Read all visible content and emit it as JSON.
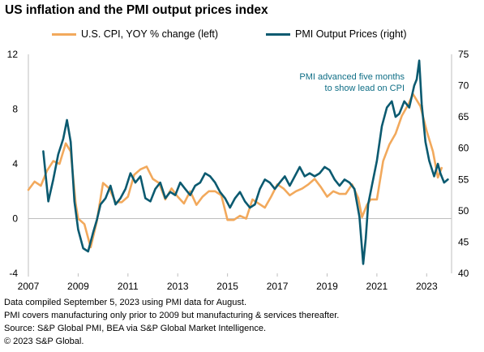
{
  "title": "US inflation and the PMI output prices index",
  "chart_data": {
    "type": "line",
    "title": "US inflation and the PMI output prices index",
    "legend_position": "top",
    "grid": false,
    "x_axis": {
      "range": [
        2007,
        2024
      ],
      "tick_labels": [
        "2007",
        "2009",
        "2011",
        "2013",
        "2015",
        "2017",
        "2019",
        "2021",
        "2023"
      ]
    },
    "y_left": {
      "range": [
        -4,
        12
      ],
      "tick_labels": [
        "-4",
        "0",
        "4",
        "8",
        "12"
      ]
    },
    "y_right": {
      "range": [
        40,
        75
      ],
      "tick_labels": [
        "40",
        "45",
        "50",
        "55",
        "60",
        "65",
        "70",
        "75"
      ]
    },
    "annotation": [
      "PMI advanced five months",
      "to show lead on CPI"
    ],
    "series": [
      {
        "name": "U.S. CPI, YOY % change (left)",
        "axis": "left",
        "color": "#f2a95c",
        "x": [
          2007.0,
          2007.25,
          2007.5,
          2007.75,
          2008.0,
          2008.25,
          2008.5,
          2008.7,
          2008.9,
          2009.0,
          2009.25,
          2009.5,
          2009.75,
          2010.0,
          2010.25,
          2010.5,
          2010.75,
          2011.0,
          2011.25,
          2011.5,
          2011.75,
          2012.0,
          2012.25,
          2012.5,
          2012.75,
          2013.0,
          2013.25,
          2013.5,
          2013.75,
          2014.0,
          2014.25,
          2014.5,
          2014.75,
          2015.0,
          2015.25,
          2015.5,
          2015.75,
          2016.0,
          2016.25,
          2016.5,
          2016.75,
          2017.0,
          2017.25,
          2017.5,
          2017.75,
          2018.0,
          2018.25,
          2018.5,
          2018.75,
          2019.0,
          2019.25,
          2019.5,
          2019.75,
          2020.0,
          2020.25,
          2020.4,
          2020.6,
          2020.75,
          2021.0,
          2021.25,
          2021.5,
          2021.75,
          2022.0,
          2022.25,
          2022.45,
          2022.75,
          2023.0,
          2023.25,
          2023.45,
          2023.6
        ],
        "values": [
          2.1,
          2.7,
          2.4,
          3.5,
          4.2,
          4.0,
          5.5,
          4.9,
          1.1,
          0.0,
          -0.4,
          -2.1,
          -0.2,
          2.6,
          2.2,
          1.2,
          1.2,
          1.6,
          3.2,
          3.6,
          3.8,
          2.9,
          2.6,
          1.4,
          2.2,
          1.6,
          1.1,
          2.0,
          1.0,
          1.6,
          2.0,
          2.0,
          1.7,
          -0.1,
          -0.1,
          0.2,
          0.0,
          1.4,
          1.1,
          0.8,
          1.6,
          2.5,
          2.2,
          1.7,
          2.0,
          2.2,
          2.5,
          2.9,
          2.3,
          1.6,
          2.0,
          1.8,
          1.8,
          2.5,
          1.5,
          0.1,
          1.0,
          1.4,
          1.4,
          4.2,
          5.4,
          6.2,
          7.5,
          8.3,
          9.1,
          8.2,
          6.4,
          4.9,
          3.0,
          3.7
        ]
      },
      {
        "name": "PMI Output Prices (right)",
        "axis": "right",
        "color": "#0b5a70",
        "x": [
          2007.6,
          2007.8,
          2008.0,
          2008.2,
          2008.4,
          2008.55,
          2008.7,
          2008.85,
          2009.0,
          2009.2,
          2009.4,
          2009.6,
          2009.75,
          2009.9,
          2010.1,
          2010.3,
          2010.5,
          2010.7,
          2010.9,
          2011.1,
          2011.3,
          2011.5,
          2011.7,
          2011.9,
          2012.1,
          2012.3,
          2012.5,
          2012.7,
          2012.9,
          2013.1,
          2013.3,
          2013.5,
          2013.7,
          2013.9,
          2014.1,
          2014.3,
          2014.5,
          2014.7,
          2014.9,
          2015.1,
          2015.3,
          2015.5,
          2015.7,
          2015.9,
          2016.1,
          2016.3,
          2016.5,
          2016.7,
          2016.9,
          2017.1,
          2017.3,
          2017.5,
          2017.7,
          2017.9,
          2018.1,
          2018.3,
          2018.5,
          2018.7,
          2018.9,
          2019.1,
          2019.3,
          2019.5,
          2019.7,
          2019.9,
          2020.1,
          2020.3,
          2020.45,
          2020.55,
          2020.65,
          2020.8,
          2021.0,
          2021.2,
          2021.4,
          2021.6,
          2021.75,
          2021.9,
          2022.1,
          2022.3,
          2022.5,
          2022.6,
          2022.7,
          2022.8,
          2022.95,
          2023.1,
          2023.3,
          2023.45,
          2023.55,
          2023.7,
          2023.85
        ],
        "values": [
          59.5,
          51.5,
          55.0,
          59.0,
          61.5,
          64.5,
          61.0,
          51.5,
          47.0,
          44.0,
          43.5,
          46.5,
          48.5,
          51.0,
          52.0,
          54.0,
          51.0,
          52.0,
          53.5,
          56.0,
          54.5,
          55.5,
          52.0,
          51.5,
          53.5,
          54.5,
          52.0,
          53.0,
          52.5,
          54.5,
          53.5,
          52.5,
          54.0,
          54.5,
          56.0,
          55.5,
          54.5,
          53.0,
          52.0,
          50.5,
          52.0,
          53.0,
          51.5,
          50.5,
          51.0,
          53.5,
          55.0,
          54.5,
          53.5,
          54.5,
          55.5,
          54.0,
          55.5,
          57.0,
          55.5,
          56.0,
          55.5,
          56.0,
          57.0,
          56.5,
          55.0,
          54.0,
          55.0,
          54.5,
          53.5,
          49.0,
          41.5,
          45.5,
          51.0,
          54.0,
          58.0,
          63.5,
          66.5,
          67.5,
          65.0,
          65.5,
          67.5,
          66.5,
          70.0,
          71.0,
          74.0,
          67.0,
          61.0,
          58.0,
          55.5,
          57.5,
          56.0,
          54.5,
          55.0
        ]
      }
    ]
  },
  "notes": [
    "Data compiled September 5, 2023 using PMI data for August.",
    "PMI covers manufacturing only prior to 2009 but manufacturing & services thereafter.",
    "Source: S&P Global PMI, BEA via S&P Global Market Intelligence.",
    "© 2023 S&P Global."
  ]
}
